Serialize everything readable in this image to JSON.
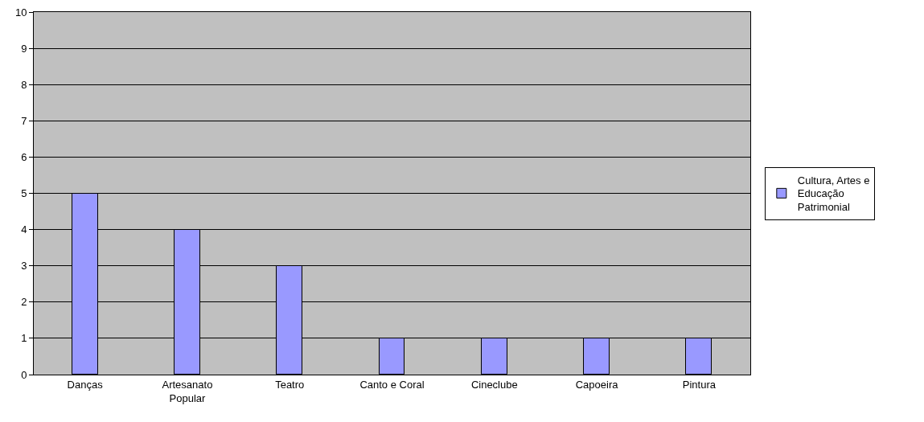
{
  "chart_data": {
    "type": "bar",
    "categories": [
      "Danças",
      "Artesanato Popular",
      "Teatro",
      "Canto e Coral",
      "Cineclube",
      "Capoeira",
      "Pintura"
    ],
    "series": [
      {
        "name": "Cultura, Artes e Educação Patrimonial",
        "color": "#9999ff",
        "values": [
          5,
          4,
          3,
          1,
          1,
          1,
          1
        ]
      }
    ],
    "ylim": [
      0,
      10
    ],
    "yticks": [
      0,
      1,
      2,
      3,
      4,
      5,
      6,
      7,
      8,
      9,
      10
    ],
    "grid": "y",
    "legend": "right"
  }
}
